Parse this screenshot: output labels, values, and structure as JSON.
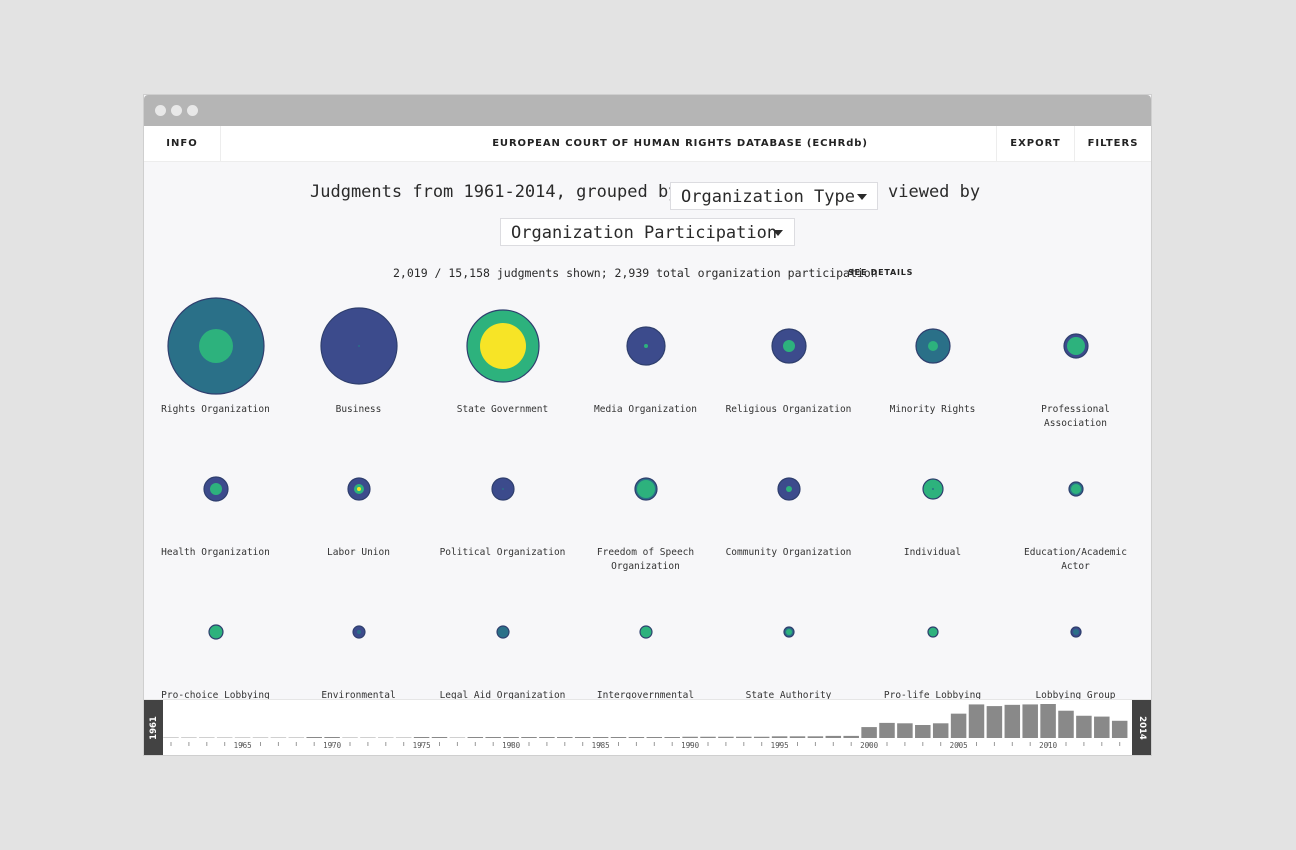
{
  "window": {
    "title_dots": [
      "close",
      "minimize",
      "maximize"
    ]
  },
  "navbar": {
    "info_label": "INFO",
    "app_title": "EUROPEAN COURT OF HUMAN RIGHTS DATABASE (ECHRdb)",
    "export_label": "EXPORT",
    "filters_label": "FILTERS"
  },
  "query": {
    "prefix": "Judgments from 1961-2014, grouped by",
    "group_by": "Organization Type",
    "middle": "viewed by",
    "view_by": "Organization Participation"
  },
  "summary": {
    "text": "2,019 / 15,158 judgments shown; 2,939 total organization participation",
    "details_link": "SEE DETAILS"
  },
  "colors": {
    "navy": "#3c4b8c",
    "teal": "#2a7088",
    "green": "#2db27d",
    "yellow": "#f7e426",
    "timeline_bar": "#898989",
    "handle": "#434343"
  },
  "groups": [
    {
      "label": "Rights Organization",
      "outer": 48,
      "outer_color": "teal",
      "inner": 17,
      "inner_color": "green"
    },
    {
      "label": "Business",
      "outer": 38,
      "outer_color": "navy",
      "inner": 1,
      "inner_color": "teal"
    },
    {
      "label": "State Government",
      "outer": 36,
      "outer_color": "green",
      "inner": 23,
      "inner_color": "yellow"
    },
    {
      "label": "Media Organization",
      "outer": 19,
      "outer_color": "navy",
      "inner": 2,
      "inner_color": "green"
    },
    {
      "label": "Religious Organization",
      "outer": 17,
      "outer_color": "navy",
      "inner": 6,
      "inner_color": "green"
    },
    {
      "label": "Minority Rights",
      "outer": 17,
      "outer_color": "teal",
      "inner": 5,
      "inner_color": "green"
    },
    {
      "label": "Professional\nAssociation",
      "outer": 12,
      "outer_color": "navy",
      "inner": 9,
      "inner_color": "green"
    },
    {
      "label": "Health Organization",
      "outer": 12,
      "outer_color": "navy",
      "inner": 6,
      "inner_color": "green"
    },
    {
      "label": "Labor Union",
      "outer": 11,
      "outer_color": "navy",
      "inner": 5,
      "inner_color": "green",
      "core": 2,
      "core_color": "yellow"
    },
    {
      "label": "Political Organization",
      "outer": 11,
      "outer_color": "navy",
      "inner": 1,
      "inner_color": "teal"
    },
    {
      "label": "Freedom of Speech\nOrganization",
      "outer": 11,
      "outer_color": "teal",
      "inner": 9,
      "inner_color": "green"
    },
    {
      "label": "Community Organization",
      "outer": 11,
      "outer_color": "navy",
      "inner": 3,
      "inner_color": "green"
    },
    {
      "label": "Individual",
      "outer": 10,
      "outer_color": "green",
      "inner": 1,
      "inner_color": "teal"
    },
    {
      "label": "Education/Academic\nActor",
      "outer": 7,
      "outer_color": "teal",
      "inner": 5,
      "inner_color": "green"
    },
    {
      "label": "Pro-choice Lobbying",
      "outer": 7,
      "outer_color": "green",
      "inner": 0,
      "inner_color": "green"
    },
    {
      "label": "Environmental",
      "outer": 6,
      "outer_color": "navy",
      "inner": 2,
      "inner_color": "teal"
    },
    {
      "label": "Legal Aid Organization",
      "outer": 6,
      "outer_color": "teal",
      "inner": 0,
      "inner_color": "teal"
    },
    {
      "label": "Intergovernmental",
      "outer": 6,
      "outer_color": "green",
      "inner": 0,
      "inner_color": "green"
    },
    {
      "label": "State Authority",
      "outer": 5,
      "outer_color": "teal",
      "inner": 3,
      "inner_color": "green"
    },
    {
      "label": "Pro-life Lobbying",
      "outer": 5,
      "outer_color": "green",
      "inner": 0,
      "inner_color": "green"
    },
    {
      "label": "Lobbying Group",
      "outer": 5,
      "outer_color": "navy",
      "inner": 3,
      "inner_color": "teal"
    }
  ],
  "timeline": {
    "start_year": "1961",
    "end_year": "2014",
    "year_labels": [
      "1965",
      "1970",
      "1975",
      "1980",
      "1985",
      "1990",
      "1995",
      "2000",
      "2005",
      "2010"
    ],
    "years": [
      1961,
      1962,
      1963,
      1964,
      1965,
      1966,
      1967,
      1968,
      1969,
      1970,
      1971,
      1972,
      1973,
      1974,
      1975,
      1976,
      1977,
      1978,
      1979,
      1980,
      1981,
      1982,
      1983,
      1984,
      1985,
      1986,
      1987,
      1988,
      1989,
      1990,
      1991,
      1992,
      1993,
      1994,
      1995,
      1996,
      1997,
      1998,
      1999,
      2000,
      2001,
      2002,
      2003,
      2004,
      2005,
      2006,
      2007,
      2008,
      2009,
      2010,
      2011,
      2012,
      2013,
      2014
    ],
    "judgment_counts": [
      0,
      0,
      0,
      0,
      0,
      0,
      0,
      0,
      1,
      1,
      0,
      0,
      0,
      0,
      1,
      1,
      0,
      1,
      1,
      1,
      1,
      1,
      1,
      1,
      2,
      2,
      2,
      2,
      2,
      3,
      3,
      3,
      3,
      3,
      4,
      4,
      4,
      5,
      5,
      26,
      36,
      35,
      31,
      35,
      58,
      80,
      76,
      79,
      80,
      81,
      65,
      53,
      51,
      41
    ]
  }
}
